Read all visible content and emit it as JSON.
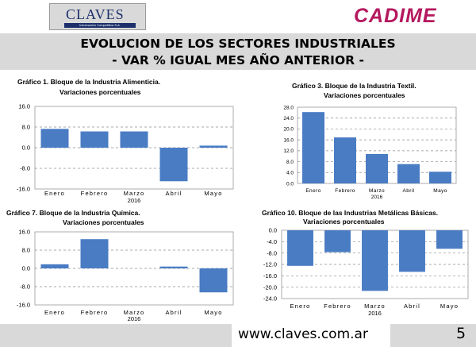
{
  "header": {
    "claves_logo": "CLAVES",
    "claves_tagline": "Información Competitiva S.A.",
    "cadime_logo": "CADIME"
  },
  "title": {
    "line1": "EVOLUCION DE LOS SECTORES INDUSTRIALES",
    "line2": "- VAR % IGUAL MES AÑO ANTERIOR -"
  },
  "footer": {
    "url": "www.claves.com.ar",
    "page_number": "5"
  },
  "colors": {
    "bar": "#4a7cc4",
    "accent": "#b5185e",
    "band": "#d9d9d9"
  },
  "chart_data": [
    {
      "type": "bar",
      "title": "Gráfico 1. Bloque de la Industria Alimenticia.",
      "subtitle": "Variaciones porcentuales",
      "categories": [
        "Enero",
        "Febrero",
        "Marzo",
        "Abril",
        "Mayo"
      ],
      "category_note": "2016",
      "values": [
        7.3,
        6.3,
        6.3,
        -13.0,
        0.8
      ],
      "ylim": [
        -16.0,
        16.0
      ],
      "ticks": [
        "16.0",
        "8.0",
        "0.0",
        "-8.0",
        "-16.0"
      ],
      "grid": true
    },
    {
      "type": "bar",
      "title": "Gráfico 3. Bloque de la Industria Textil.",
      "subtitle": "Variaciones porcentuales",
      "categories": [
        "Enero",
        "Febrero",
        "Marzo",
        "Abril",
        "Mayo"
      ],
      "category_note": "2016",
      "values": [
        26.2,
        16.9,
        10.8,
        7.1,
        4.3
      ],
      "ylim": [
        0.0,
        28.0
      ],
      "ticks": [
        "28.0",
        "24.0",
        "20.0",
        "16.0",
        "12.0",
        "8.0",
        "4.0",
        "0.0"
      ],
      "grid": true
    },
    {
      "type": "bar",
      "title": "Gráfico 7. Bloque de la Industria Química.",
      "subtitle": "Variaciones porcentuales",
      "categories": [
        "Enero",
        "Febrero",
        "Marzo",
        "Abril",
        "Mayo"
      ],
      "category_note": "2016",
      "values": [
        1.8,
        12.8,
        0.0,
        0.8,
        -10.5
      ],
      "ylim": [
        -16.0,
        16.0
      ],
      "ticks": [
        "16.0",
        "8.0",
        "0.0",
        "-8.0",
        "-16.0"
      ],
      "grid": true
    },
    {
      "type": "bar",
      "title": "Gráfico 10. Bloque de las Industrias Metálicas Básicas.",
      "subtitle": "Variaciones porcentuales",
      "categories": [
        "Enero",
        "Febrero",
        "Marzo",
        "Abril",
        "Mayo"
      ],
      "category_note": "2016",
      "values": [
        -12.5,
        -7.7,
        -21.3,
        -14.6,
        -6.5
      ],
      "ylim": [
        -24.0,
        0.0
      ],
      "ticks": [
        "0.0",
        "-4.0",
        "-8.0",
        "-12.0",
        "-16.0",
        "-20.0",
        "-24.0"
      ],
      "grid": true
    }
  ]
}
